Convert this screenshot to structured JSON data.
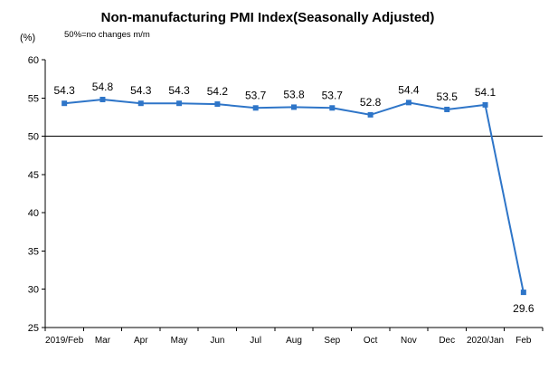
{
  "chart_data": {
    "type": "line",
    "title": "Non-manufacturing PMI Index(Seasonally Adjusted)",
    "unit_label": "(%)",
    "annotation": "50%=no changes  m/m",
    "categories": [
      "2019/Feb",
      "Mar",
      "Apr",
      "May",
      "Jun",
      "Jul",
      "Aug",
      "Sep",
      "Oct",
      "Nov",
      "Dec",
      "2020/Jan",
      "Feb"
    ],
    "series": [
      {
        "values": [
          54.3,
          54.8,
          54.3,
          54.3,
          54.2,
          53.7,
          53.8,
          53.7,
          52.8,
          54.4,
          53.5,
          54.1,
          29.6
        ],
        "labels": [
          "54.3",
          "54.8",
          "54.3",
          "54.3",
          "54.2",
          "53.7",
          "53.8",
          "53.7",
          "52.8",
          "54.4",
          "53.5",
          "54.1",
          "29.6"
        ]
      }
    ],
    "ylim": [
      25,
      60
    ],
    "yticks": [
      "25",
      "30",
      "35",
      "40",
      "45",
      "50",
      "55",
      "60"
    ],
    "reference_line": 50,
    "grid": false,
    "legend": "none",
    "colors": {
      "series": "#2e75c8"
    }
  }
}
